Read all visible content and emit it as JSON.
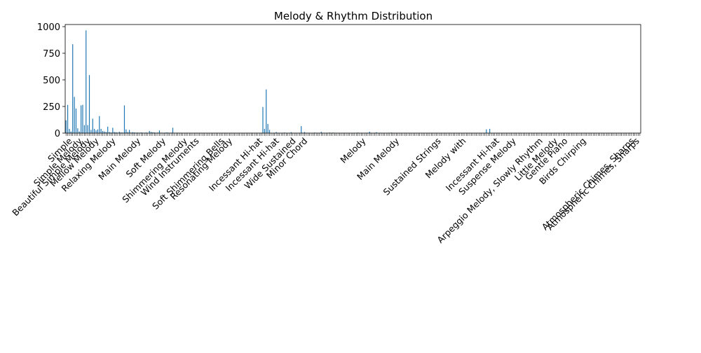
{
  "chart_data": {
    "type": "bar",
    "title": "Melody & Rhythm Distribution",
    "xlabel": "",
    "ylabel": "",
    "ylim": [
      0,
      1020
    ],
    "yticks": [
      0,
      250,
      500,
      750,
      1000
    ],
    "grid": false,
    "bar_color": "#1f77b4",
    "category_count": 345,
    "values": [
      120,
      265,
      40,
      15,
      835,
      340,
      230,
      45,
      15,
      260,
      265,
      75,
      965,
      75,
      545,
      30,
      135,
      40,
      25,
      35,
      160,
      40,
      20,
      15,
      10,
      60,
      10,
      5,
      50,
      10,
      8,
      5,
      12,
      6,
      5,
      260,
      35,
      10,
      30,
      5,
      8,
      6,
      4,
      5,
      3,
      6,
      4,
      3,
      5,
      2,
      20,
      10,
      8,
      6,
      3,
      5,
      25,
      4,
      3,
      2,
      6,
      5,
      3,
      4,
      50,
      2,
      3,
      4,
      2,
      3,
      2,
      1,
      2,
      3,
      1,
      2,
      1,
      2,
      3,
      2,
      1,
      2,
      1,
      2,
      1,
      1,
      2,
      1,
      1,
      2,
      1,
      2,
      1,
      1,
      2,
      1,
      2,
      1,
      1,
      2,
      1,
      1,
      2,
      1,
      1,
      2,
      1,
      1,
      2,
      1,
      1,
      2,
      1,
      1,
      2,
      1,
      1,
      2,
      1,
      1,
      2,
      1,
      1,
      2,
      1,
      1,
      2,
      1,
      1,
      2,
      1,
      1,
      1,
      1,
      1,
      1,
      1,
      1,
      1,
      1,
      1,
      1,
      1,
      1,
      1,
      1,
      1,
      1,
      1,
      1,
      1,
      1,
      1,
      1,
      1,
      1,
      1,
      1,
      1,
      1,
      1,
      1,
      1,
      1,
      1,
      1,
      1,
      1,
      1,
      1,
      1,
      1,
      1,
      1,
      1,
      1,
      1,
      1,
      1,
      1,
      1,
      1,
      1,
      1,
      1,
      1,
      1,
      1,
      1,
      1,
      1,
      1,
      1,
      1,
      1,
      1,
      1,
      1,
      1,
      1,
      1,
      1,
      1,
      1,
      1,
      1,
      1,
      1,
      1,
      1,
      1,
      1,
      1,
      1,
      1,
      1,
      1,
      1,
      1,
      1,
      1,
      1,
      1,
      1,
      1,
      1,
      1,
      1,
      1,
      1,
      1,
      1,
      1,
      1,
      1,
      1,
      1,
      1,
      1,
      1,
      1,
      1,
      1,
      1,
      1,
      1,
      1,
      1,
      1,
      1,
      1,
      1,
      1,
      1,
      1,
      1,
      1,
      1,
      1,
      1,
      1,
      1,
      1,
      1,
      1,
      1,
      1,
      1,
      1,
      1,
      1,
      1,
      1,
      1,
      1,
      1,
      1,
      1,
      1,
      1,
      1,
      1,
      1,
      1,
      1,
      1,
      1,
      1,
      1,
      1,
      1,
      1,
      1,
      1,
      1,
      1,
      1,
      1,
      1,
      1,
      1,
      1,
      1,
      1,
      1,
      1,
      1,
      1,
      1,
      1,
      1,
      1,
      1,
      1,
      1,
      1,
      1,
      1,
      1,
      1,
      1,
      1,
      1,
      1,
      1,
      1,
      1,
      1,
      1,
      1,
      1,
      1,
      1,
      1,
      1,
      1,
      1,
      1,
      1,
      1,
      1,
      1,
      1,
      1,
      1
    ],
    "value_overrides": [
      {
        "index": 118,
        "value": 245
      },
      {
        "index": 119,
        "value": 40
      },
      {
        "index": 120,
        "value": 410
      },
      {
        "index": 121,
        "value": 85
      },
      {
        "index": 122,
        "value": 30
      },
      {
        "index": 126,
        "value": 10
      },
      {
        "index": 131,
        "value": 5
      },
      {
        "index": 135,
        "value": 8
      },
      {
        "index": 141,
        "value": 65
      },
      {
        "index": 143,
        "value": 10
      },
      {
        "index": 149,
        "value": 5
      },
      {
        "index": 153,
        "value": 12
      },
      {
        "index": 158,
        "value": 5
      },
      {
        "index": 160,
        "value": 5
      },
      {
        "index": 167,
        "value": 3
      },
      {
        "index": 175,
        "value": 5
      },
      {
        "index": 182,
        "value": 12
      },
      {
        "index": 186,
        "value": 8
      },
      {
        "index": 195,
        "value": 5
      },
      {
        "index": 252,
        "value": 35
      },
      {
        "index": 254,
        "value": 40
      }
    ],
    "visible_tick_labels": [
      {
        "index": 344,
        "text": "Atmospheric Chimes, Sharps"
      },
      {
        "index": 341,
        "text": "Atmospheric Chimes, Sharps"
      },
      {
        "index": 312,
        "text": "Birds Chirping"
      },
      {
        "index": 286,
        "text": "Arpeggio Melody, Slowly Rhythm"
      },
      {
        "index": 295,
        "text": "Little Melody"
      },
      {
        "index": 301,
        "text": "Gentle Piano"
      },
      {
        "index": 270,
        "text": "Suspense Melody"
      },
      {
        "index": 260,
        "text": "Incessant Hi-hat"
      },
      {
        "index": 240,
        "text": "Melody with"
      },
      {
        "index": 225,
        "text": "Sustained Strings"
      },
      {
        "index": 200,
        "text": "Main Melody"
      },
      {
        "index": 180,
        "text": "Melody"
      },
      {
        "index": 145,
        "text": "Minor Chord"
      },
      {
        "index": 138,
        "text": "Wide Sustained"
      },
      {
        "index": 128,
        "text": "Incessant Hi-hat"
      },
      {
        "index": 118,
        "text": "Incessant Hi-hat"
      },
      {
        "index": 100,
        "text": "Resonating Melody"
      },
      {
        "index": 95,
        "text": "Soft Shimmering Bells"
      },
      {
        "index": 80,
        "text": "Wind Instruments"
      },
      {
        "index": 73,
        "text": "Shimmering Melody"
      },
      {
        "index": 60,
        "text": "Soft Melody"
      },
      {
        "index": 45,
        "text": "Main Melody"
      },
      {
        "index": 30,
        "text": "Relaxing Melody"
      },
      {
        "index": 20,
        "text": "Mellow Melody"
      },
      {
        "index": 15,
        "text": "Beautiful Simple Melody"
      },
      {
        "index": 10,
        "text": "Simple Melody"
      },
      {
        "index": 4,
        "text": "Simple"
      }
    ]
  }
}
